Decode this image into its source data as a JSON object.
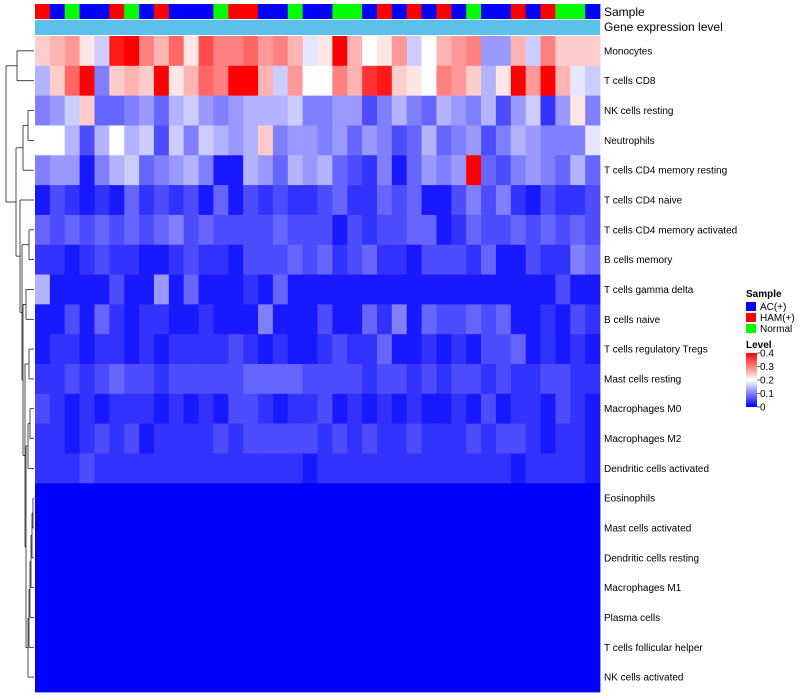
{
  "chart_data": {
    "type": "heatmap",
    "annotation_titles": {
      "sample": "Sample",
      "expression": "Gene expression level"
    },
    "sample_groups": [
      "HAM(+)",
      "AC(+)",
      "Normal",
      "AC(+)",
      "AC(+)",
      "HAM(+)",
      "Normal",
      "AC(+)",
      "HAM(+)",
      "AC(+)",
      "AC(+)",
      "AC(+)",
      "Normal",
      "HAM(+)",
      "HAM(+)",
      "AC(+)",
      "AC(+)",
      "Normal",
      "AC(+)",
      "AC(+)",
      "Normal",
      "Normal",
      "AC(+)",
      "HAM(+)",
      "AC(+)",
      "HAM(+)",
      "AC(+)",
      "HAM(+)",
      "AC(+)",
      "Normal",
      "AC(+)",
      "AC(+)",
      "HAM(+)",
      "AC(+)",
      "HAM(+)",
      "Normal",
      "Normal",
      "AC(+)"
    ],
    "row_labels": [
      "Monocytes",
      "T cells CD8",
      "NK cells resting",
      "Neutrophils",
      "T cells CD4 memory resting",
      "T cells CD4 naive",
      "T cells CD4 memory activated",
      "B cells memory",
      "T cells gamma delta",
      "B cells naive",
      "T cells regulatory  Tregs",
      "Mast cells resting",
      "Macrophages M0",
      "Macrophages M2",
      "Dendritic cells activated",
      "Eosinophils",
      "Mast cells activated",
      "Dendritic cells resting",
      "Macrophages M1",
      "Plasma cells",
      "T cells follicular helper",
      "NK cells activated"
    ],
    "values": [
      [
        0.24,
        0.26,
        0.28,
        0.22,
        0.16,
        0.38,
        0.4,
        0.3,
        0.26,
        0.32,
        0.22,
        0.34,
        0.3,
        0.3,
        0.32,
        0.28,
        0.3,
        0.26,
        0.18,
        0.22,
        0.42,
        0.26,
        0.2,
        0.22,
        0.28,
        0.16,
        0.2,
        0.26,
        0.28,
        0.3,
        0.12,
        0.12,
        0.26,
        0.16,
        0.3,
        0.24,
        0.24,
        0.24
      ],
      [
        0.14,
        0.24,
        0.32,
        0.4,
        0.1,
        0.24,
        0.26,
        0.24,
        0.42,
        0.22,
        0.26,
        0.32,
        0.3,
        0.4,
        0.4,
        0.26,
        0.16,
        0.28,
        0.2,
        0.2,
        0.3,
        0.26,
        0.36,
        0.38,
        0.24,
        0.22,
        0.2,
        0.3,
        0.28,
        0.24,
        0.14,
        0.22,
        0.4,
        0.28,
        0.42,
        0.26,
        0.18,
        0.16
      ],
      [
        0.1,
        0.12,
        0.16,
        0.24,
        0.08,
        0.08,
        0.1,
        0.12,
        0.08,
        0.14,
        0.16,
        0.12,
        0.1,
        0.12,
        0.14,
        0.14,
        0.14,
        0.16,
        0.1,
        0.1,
        0.12,
        0.12,
        0.06,
        0.1,
        0.14,
        0.1,
        0.08,
        0.14,
        0.12,
        0.1,
        0.14,
        0.06,
        0.12,
        0.16,
        0.04,
        0.12,
        0.22,
        0.1
      ],
      [
        0.2,
        0.2,
        0.14,
        0.06,
        0.14,
        0.2,
        0.14,
        0.16,
        0.06,
        0.16,
        0.1,
        0.16,
        0.14,
        0.12,
        0.14,
        0.24,
        0.1,
        0.12,
        0.12,
        0.1,
        0.12,
        0.08,
        0.12,
        0.1,
        0.06,
        0.08,
        0.14,
        0.08,
        0.1,
        0.12,
        0.06,
        0.1,
        0.14,
        0.12,
        0.1,
        0.1,
        0.1,
        0.18
      ],
      [
        0.1,
        0.12,
        0.12,
        0.02,
        0.1,
        0.14,
        0.16,
        0.08,
        0.1,
        0.12,
        0.14,
        0.1,
        0.02,
        0.02,
        0.14,
        0.12,
        0.08,
        0.14,
        0.12,
        0.14,
        0.08,
        0.06,
        0.04,
        0.1,
        0.02,
        0.08,
        0.12,
        0.1,
        0.12,
        0.4,
        0.08,
        0.06,
        0.1,
        0.12,
        0.1,
        0.08,
        0.14,
        0.08
      ],
      [
        0.02,
        0.06,
        0.04,
        0.02,
        0.04,
        0.02,
        0.08,
        0.04,
        0.06,
        0.04,
        0.06,
        0.02,
        0.08,
        0.02,
        0.06,
        0.04,
        0.06,
        0.04,
        0.04,
        0.06,
        0.08,
        0.04,
        0.04,
        0.08,
        0.06,
        0.08,
        0.02,
        0.02,
        0.06,
        0.1,
        0.06,
        0.1,
        0.04,
        0.02,
        0.06,
        0.04,
        0.04,
        0.06
      ],
      [
        0.08,
        0.06,
        0.08,
        0.06,
        0.08,
        0.06,
        0.08,
        0.06,
        0.08,
        0.1,
        0.06,
        0.08,
        0.06,
        0.06,
        0.06,
        0.06,
        0.08,
        0.06,
        0.06,
        0.06,
        0.02,
        0.06,
        0.04,
        0.06,
        0.06,
        0.08,
        0.08,
        0.02,
        0.04,
        0.08,
        0.06,
        0.06,
        0.08,
        0.06,
        0.08,
        0.06,
        0.08,
        0.06
      ],
      [
        0.04,
        0.04,
        0.02,
        0.04,
        0.06,
        0.04,
        0.04,
        0.02,
        0.02,
        0.04,
        0.06,
        0.04,
        0.04,
        0.02,
        0.06,
        0.06,
        0.06,
        0.08,
        0.06,
        0.08,
        0.04,
        0.06,
        0.08,
        0.04,
        0.04,
        0.02,
        0.06,
        0.06,
        0.06,
        0.04,
        0.08,
        0.02,
        0.02,
        0.06,
        0.04,
        0.04,
        0.1,
        0.08
      ],
      [
        0.14,
        0.02,
        0.02,
        0.02,
        0.02,
        0.06,
        0.02,
        0.02,
        0.12,
        0.02,
        0.08,
        0.02,
        0.02,
        0.02,
        0.04,
        0.02,
        0.08,
        0.02,
        0.02,
        0.02,
        0.02,
        0.02,
        0.02,
        0.02,
        0.02,
        0.02,
        0.02,
        0.02,
        0.02,
        0.02,
        0.02,
        0.02,
        0.02,
        0.02,
        0.02,
        0.06,
        0.02,
        0.02
      ],
      [
        0.02,
        0.02,
        0.06,
        0.02,
        0.08,
        0.04,
        0.02,
        0.04,
        0.04,
        0.02,
        0.02,
        0.04,
        0.02,
        0.02,
        0.02,
        0.1,
        0.02,
        0.02,
        0.02,
        0.06,
        0.02,
        0.02,
        0.08,
        0.04,
        0.1,
        0.02,
        0.08,
        0.06,
        0.06,
        0.08,
        0.06,
        0.08,
        0.02,
        0.02,
        0.04,
        0.02,
        0.06,
        0.04
      ],
      [
        0.02,
        0.04,
        0.04,
        0.02,
        0.04,
        0.04,
        0.02,
        0.04,
        0.02,
        0.04,
        0.04,
        0.04,
        0.04,
        0.06,
        0.04,
        0.02,
        0.04,
        0.02,
        0.02,
        0.04,
        0.06,
        0.04,
        0.04,
        0.08,
        0.02,
        0.02,
        0.04,
        0.02,
        0.04,
        0.02,
        0.06,
        0.06,
        0.08,
        0.02,
        0.04,
        0.02,
        0.04,
        0.02
      ],
      [
        0.04,
        0.04,
        0.06,
        0.04,
        0.06,
        0.08,
        0.06,
        0.06,
        0.04,
        0.06,
        0.06,
        0.06,
        0.06,
        0.06,
        0.08,
        0.08,
        0.08,
        0.08,
        0.06,
        0.06,
        0.06,
        0.06,
        0.04,
        0.06,
        0.06,
        0.04,
        0.06,
        0.04,
        0.06,
        0.06,
        0.04,
        0.06,
        0.04,
        0.04,
        0.06,
        0.06,
        0.04,
        0.04
      ],
      [
        0.06,
        0.04,
        0.02,
        0.04,
        0.02,
        0.04,
        0.04,
        0.04,
        0.02,
        0.04,
        0.02,
        0.04,
        0.02,
        0.06,
        0.06,
        0.04,
        0.02,
        0.04,
        0.04,
        0.06,
        0.02,
        0.04,
        0.02,
        0.04,
        0.02,
        0.04,
        0.02,
        0.02,
        0.04,
        0.02,
        0.06,
        0.02,
        0.04,
        0.04,
        0.02,
        0.06,
        0.04,
        0.02
      ],
      [
        0.04,
        0.04,
        0.02,
        0.04,
        0.06,
        0.04,
        0.06,
        0.02,
        0.04,
        0.04,
        0.04,
        0.04,
        0.06,
        0.04,
        0.06,
        0.06,
        0.06,
        0.06,
        0.06,
        0.04,
        0.06,
        0.04,
        0.06,
        0.04,
        0.04,
        0.06,
        0.04,
        0.04,
        0.04,
        0.06,
        0.04,
        0.06,
        0.06,
        0.04,
        0.02,
        0.04,
        0.04,
        0.02
      ],
      [
        0.04,
        0.04,
        0.04,
        0.06,
        0.04,
        0.04,
        0.04,
        0.04,
        0.04,
        0.04,
        0.04,
        0.04,
        0.04,
        0.04,
        0.04,
        0.04,
        0.04,
        0.04,
        0.02,
        0.04,
        0.04,
        0.04,
        0.04,
        0.04,
        0.04,
        0.04,
        0.04,
        0.04,
        0.04,
        0.04,
        0.04,
        0.04,
        0.02,
        0.04,
        0.04,
        0.04,
        0.04,
        0.02
      ],
      [
        0,
        0,
        0,
        0,
        0,
        0,
        0,
        0,
        0,
        0,
        0,
        0,
        0,
        0,
        0,
        0,
        0,
        0,
        0,
        0,
        0,
        0,
        0,
        0,
        0,
        0,
        0,
        0,
        0,
        0,
        0,
        0,
        0,
        0,
        0,
        0,
        0,
        0
      ],
      [
        0,
        0,
        0,
        0,
        0,
        0,
        0,
        0,
        0,
        0,
        0,
        0,
        0,
        0,
        0,
        0,
        0,
        0,
        0,
        0,
        0,
        0,
        0,
        0,
        0,
        0,
        0,
        0,
        0,
        0,
        0,
        0,
        0,
        0,
        0,
        0,
        0,
        0
      ],
      [
        0,
        0,
        0,
        0,
        0,
        0,
        0,
        0,
        0,
        0,
        0,
        0,
        0,
        0,
        0,
        0,
        0,
        0,
        0,
        0,
        0,
        0,
        0,
        0,
        0,
        0,
        0,
        0,
        0,
        0,
        0,
        0,
        0,
        0,
        0,
        0,
        0,
        0
      ],
      [
        0,
        0,
        0,
        0,
        0,
        0,
        0,
        0,
        0,
        0,
        0,
        0,
        0,
        0,
        0,
        0,
        0,
        0,
        0,
        0,
        0,
        0,
        0,
        0,
        0,
        0,
        0,
        0,
        0,
        0,
        0,
        0,
        0,
        0,
        0,
        0,
        0,
        0
      ],
      [
        0,
        0,
        0,
        0,
        0,
        0,
        0,
        0,
        0,
        0,
        0,
        0,
        0,
        0,
        0,
        0,
        0,
        0,
        0,
        0,
        0,
        0,
        0,
        0,
        0,
        0,
        0,
        0,
        0,
        0,
        0,
        0,
        0,
        0,
        0,
        0,
        0,
        0
      ],
      [
        0,
        0,
        0,
        0,
        0,
        0,
        0,
        0,
        0,
        0,
        0,
        0,
        0,
        0,
        0,
        0,
        0,
        0,
        0,
        0,
        0,
        0,
        0,
        0,
        0,
        0,
        0,
        0,
        0,
        0,
        0,
        0,
        0,
        0,
        0,
        0,
        0,
        0
      ],
      [
        0,
        0,
        0,
        0,
        0,
        0,
        0,
        0,
        0,
        0,
        0,
        0,
        0,
        0,
        0,
        0,
        0,
        0,
        0,
        0,
        0,
        0,
        0,
        0,
        0,
        0,
        0,
        0,
        0,
        0,
        0,
        0,
        0,
        0,
        0,
        0,
        0,
        0
      ]
    ],
    "sample_legend": {
      "title": "Sample",
      "items": [
        {
          "label": "AC(+)",
          "color": "#0000ff"
        },
        {
          "label": "HAM(+)",
          "color": "#ff0000"
        },
        {
          "label": "Normal",
          "color": "#00ff00"
        }
      ]
    },
    "level_legend": {
      "title": "Level",
      "range": [
        0,
        0.4
      ],
      "ticks": [
        "0.4",
        "0.3",
        "0.2",
        "0.1",
        "0"
      ]
    },
    "color_scale": {
      "low": "#0000ff",
      "mid": "#ffffff",
      "high": "#ff0000",
      "mid_value": 0.2
    },
    "expression_bar_color": "#5bc0eb",
    "legend_position": "right",
    "dendrogram": "left"
  }
}
